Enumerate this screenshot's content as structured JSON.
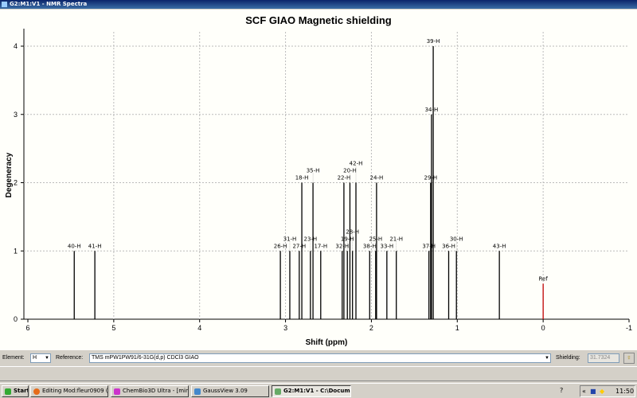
{
  "window": {
    "title": "G2:M1:V1 - NMR Spectra"
  },
  "chart_data": {
    "type": "bar",
    "title": "SCF GIAO Magnetic shielding",
    "xlabel": "Shift (ppm)",
    "ylabel": "Degeneracy",
    "xlim": [
      6,
      -1
    ],
    "ylim": [
      0,
      4.2
    ],
    "xticks": [
      6,
      5,
      4,
      3,
      2,
      1,
      0,
      -1
    ],
    "yticks": [
      0,
      1,
      2,
      3,
      4
    ],
    "grid": true,
    "peaks": [
      {
        "label": "40-H",
        "shift": 5.46,
        "degeneracy": 1
      },
      {
        "label": "41-H",
        "shift": 5.22,
        "degeneracy": 1
      },
      {
        "label": "26-H",
        "shift": 3.06,
        "degeneracy": 1
      },
      {
        "label": "31-H",
        "shift": 2.95,
        "degeneracy": 1
      },
      {
        "label": "27-H",
        "shift": 2.84,
        "degeneracy": 1
      },
      {
        "label": "18-H",
        "shift": 2.81,
        "degeneracy": 2
      },
      {
        "label": "23-H",
        "shift": 2.71,
        "degeneracy": 1
      },
      {
        "label": "35-H",
        "shift": 2.68,
        "degeneracy": 2
      },
      {
        "label": "17-H",
        "shift": 2.59,
        "degeneracy": 1
      },
      {
        "label": "32-H",
        "shift": 2.34,
        "degeneracy": 1
      },
      {
        "label": "22-H",
        "shift": 2.32,
        "degeneracy": 2
      },
      {
        "label": "19-H",
        "shift": 2.28,
        "degeneracy": 1
      },
      {
        "label": "20-H",
        "shift": 2.25,
        "degeneracy": 2
      },
      {
        "label": "28-H",
        "shift": 2.22,
        "degeneracy": 1
      },
      {
        "label": "42-H",
        "shift": 2.18,
        "degeneracy": 2
      },
      {
        "label": "38-H",
        "shift": 2.02,
        "degeneracy": 1
      },
      {
        "label": "25-H",
        "shift": 1.95,
        "degeneracy": 1
      },
      {
        "label": "24-H",
        "shift": 1.94,
        "degeneracy": 2
      },
      {
        "label": "33-H",
        "shift": 1.82,
        "degeneracy": 1
      },
      {
        "label": "21-H",
        "shift": 1.71,
        "degeneracy": 1
      },
      {
        "label": "37-H",
        "shift": 1.33,
        "degeneracy": 1
      },
      {
        "label": "29-H",
        "shift": 1.31,
        "degeneracy": 2
      },
      {
        "label": "34-H",
        "shift": 1.3,
        "degeneracy": 3
      },
      {
        "label": "39-H",
        "shift": 1.28,
        "degeneracy": 4
      },
      {
        "label": "36-H",
        "shift": 1.1,
        "degeneracy": 1
      },
      {
        "label": "30-H",
        "shift": 1.01,
        "degeneracy": 1
      },
      {
        "label": "43-H",
        "shift": 0.51,
        "degeneracy": 1
      },
      {
        "label": "Ref",
        "shift": 0,
        "degeneracy": 0.52,
        "color": "#c00000"
      }
    ]
  },
  "controls": {
    "element_label": "Element:",
    "element_value": "H",
    "reference_label": "Reference:",
    "reference_value": "TMS mPW1PW91/6-31G(d,p)  CDCl3 GIAO",
    "shielding_label": "Shielding:",
    "shielding_value": "31.7324"
  },
  "taskbar": {
    "start": "Start",
    "tasks": [
      "Editing Mod:fleur0909 (s...",
      "ChemBio3D Ultra - [minor...",
      "GaussView 3.09",
      "G2:M1:V1 - C:\\Docum..."
    ],
    "clock": "11:50"
  }
}
